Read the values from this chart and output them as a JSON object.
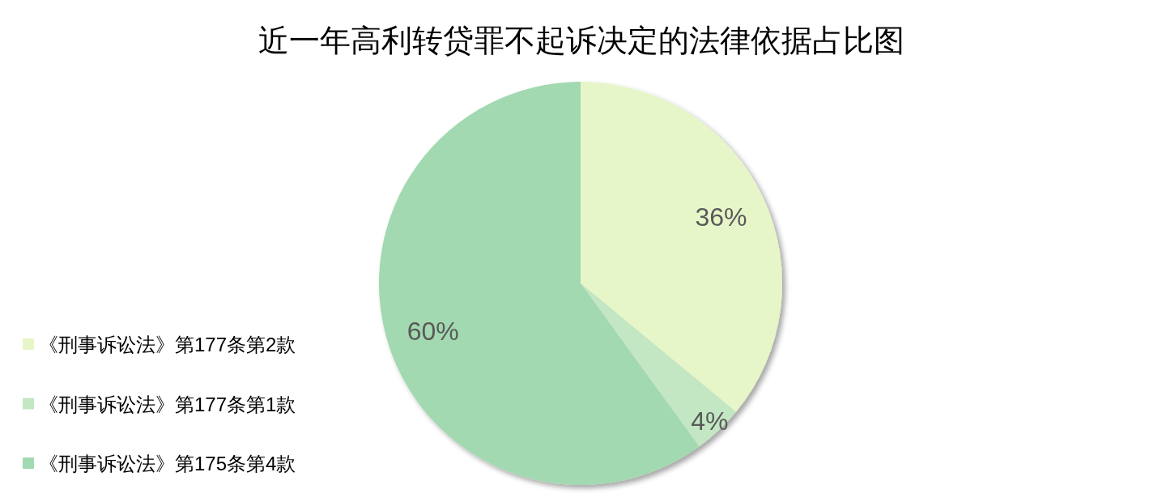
{
  "chart_data": {
    "type": "pie",
    "title": "近一年高利转贷罪不起诉决定的法律依据占比图",
    "categories": [
      "《刑事诉讼法》第177条第2款",
      "《刑事诉讼法》第177条第1款",
      "《刑事诉讼法》第175条第4款"
    ],
    "values": [
      36,
      4,
      60
    ],
    "colors": [
      "#e6f6c8",
      "#c3e7c3",
      "#a2d9b0"
    ],
    "value_labels": [
      "36%",
      "4%",
      "60%"
    ],
    "legend": "left"
  }
}
